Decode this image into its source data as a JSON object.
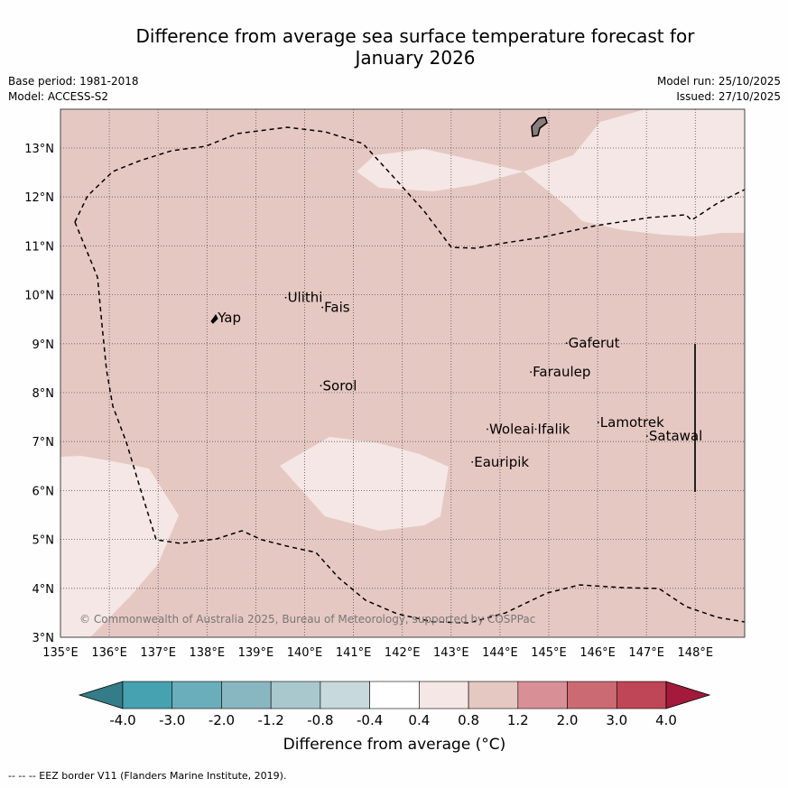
{
  "title_line1": "Difference from average sea surface temperature forecast for",
  "title_line2": "January 2026",
  "base_period": "Base period: 1981-2018",
  "model": "Model: ACCESS-S2",
  "model_run": "Model run: 25/10/2025",
  "issued": "Issued: 27/10/2025",
  "copyright": "© Commonwealth of Australia 2025, Bureau of Meteorology, supported by COSPPac",
  "lon_ticks": [
    "135°E",
    "136°E",
    "137°E",
    "138°E",
    "139°E",
    "140°E",
    "141°E",
    "142°E",
    "143°E",
    "144°E",
    "145°E",
    "146°E",
    "147°E",
    "148°E"
  ],
  "lat_ticks": [
    "3°N",
    "4°N",
    "5°N",
    "6°N",
    "7°N",
    "8°N",
    "9°N",
    "10°N",
    "11°N",
    "12°N",
    "13°N"
  ],
  "places": [
    {
      "name": "Yap",
      "lon": 138.22,
      "lat": 9.44
    },
    {
      "name": "Ulithi",
      "lon": 139.65,
      "lat": 9.85
    },
    {
      "name": "Fais",
      "lon": 140.4,
      "lat": 9.65
    },
    {
      "name": "Gaferut",
      "lon": 145.4,
      "lat": 8.92
    },
    {
      "name": "Faraulep",
      "lon": 144.67,
      "lat": 8.33
    },
    {
      "name": "Sorol",
      "lon": 140.37,
      "lat": 8.05
    },
    {
      "name": "Woleai",
      "lon": 143.78,
      "lat": 7.16
    },
    {
      "name": "Ifalik",
      "lon": 144.77,
      "lat": 7.16
    },
    {
      "name": "Lamotrek",
      "lon": 146.05,
      "lat": 7.3
    },
    {
      "name": "Satawal",
      "lon": 147.05,
      "lat": 7.02
    },
    {
      "name": "Eauripik",
      "lon": 143.47,
      "lat": 6.49
    }
  ],
  "colorbar": {
    "ticks": [
      "-4.0",
      "-3.0",
      "-2.0",
      "-1.2",
      "-0.8",
      "-0.4",
      "0.4",
      "0.8",
      "1.2",
      "2.0",
      "3.0",
      "4.0"
    ],
    "colors": [
      "#46a1b1",
      "#6aaebb",
      "#89b7c1",
      "#a9c8cd",
      "#c7d9dc",
      "#ffffff",
      "#f4e7e5",
      "#e6c8c3",
      "#d98f96",
      "#cc6a73",
      "#bf4656"
    ],
    "under_color": "#347c88",
    "over_color": "#a31a3a",
    "label": "Difference from average (°C)"
  },
  "field_colors": {
    "background": "#e6c8c3",
    "light": "#f4e7e5"
  },
  "footer": "-- -- -- EEZ border V11 (Flanders Marine Institute, 2019)."
}
